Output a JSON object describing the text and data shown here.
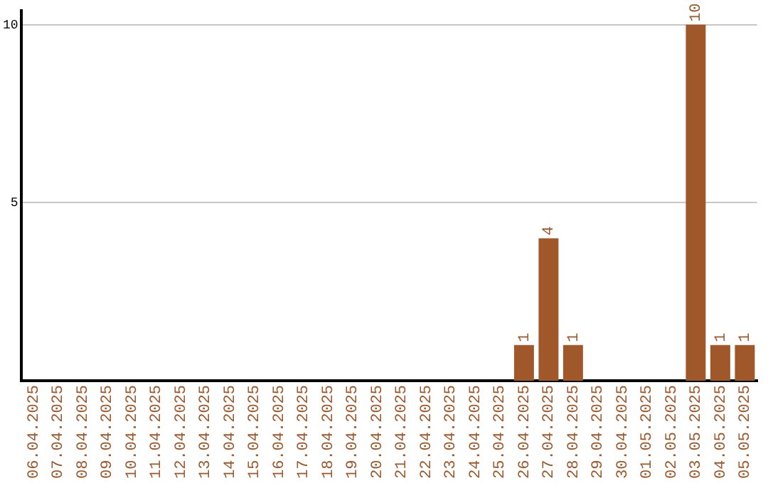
{
  "chart_data": {
    "type": "bar",
    "categories": [
      "06.04.2025",
      "07.04.2025",
      "08.04.2025",
      "09.04.2025",
      "10.04.2025",
      "11.04.2025",
      "12.04.2025",
      "13.04.2025",
      "14.04.2025",
      "15.04.2025",
      "16.04.2025",
      "17.04.2025",
      "18.04.2025",
      "19.04.2025",
      "20.04.2025",
      "21.04.2025",
      "22.04.2025",
      "23.04.2025",
      "24.04.2025",
      "25.04.2025",
      "26.04.2025",
      "27.04.2025",
      "28.04.2025",
      "29.04.2025",
      "30.04.2025",
      "01.05.2025",
      "02.05.2025",
      "03.05.2025",
      "04.05.2025",
      "05.05.2025"
    ],
    "values": [
      0,
      0,
      0,
      0,
      0,
      0,
      0,
      0,
      0,
      0,
      0,
      0,
      0,
      0,
      0,
      0,
      0,
      0,
      0,
      0,
      1,
      4,
      1,
      0,
      0,
      0,
      0,
      10,
      1,
      1
    ],
    "value_labels": [
      null,
      null,
      null,
      null,
      null,
      null,
      null,
      null,
      null,
      null,
      null,
      null,
      null,
      null,
      null,
      null,
      null,
      null,
      null,
      null,
      "1",
      "4",
      "1",
      null,
      null,
      null,
      null,
      "10",
      "1",
      "1"
    ],
    "color": "#a0582a",
    "ylim": [
      0,
      10.4
    ],
    "yticks": [
      5,
      10
    ],
    "grid": "y",
    "legend": false
  }
}
